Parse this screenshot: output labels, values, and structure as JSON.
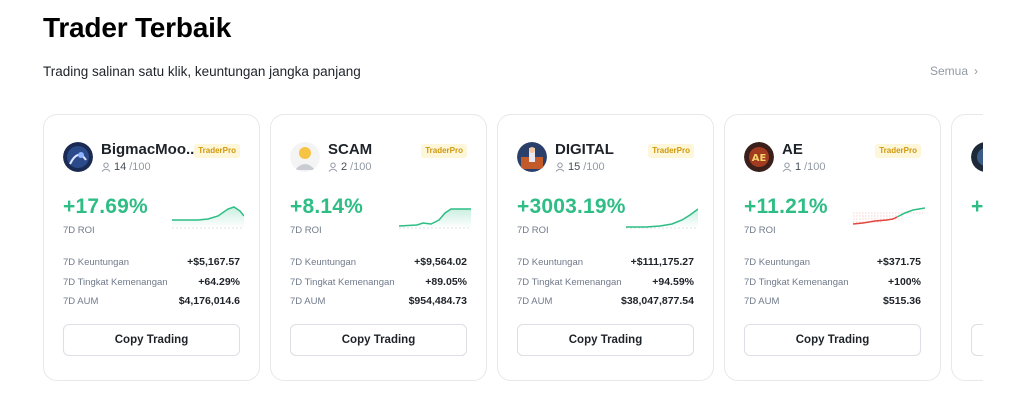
{
  "header": {
    "title": "Trader Terbaik",
    "subtitle": "Trading salinan satu klik, keuntungan jangka panjang",
    "see_all": "Semua"
  },
  "colors": {
    "positive": "#2ebd85",
    "negative": "#e3463f",
    "badge_bg": "#fef6d8",
    "badge_text": "#d0980b"
  },
  "traders": [
    {
      "name": "BigmacMoo...",
      "copiers": "14",
      "max": "/100",
      "badge": "TraderPro",
      "roi": "+17.69%",
      "roi_label": "7D ROI",
      "stats": [
        {
          "label": "7D Keuntungan",
          "value": "+$5,167.57"
        },
        {
          "label": "7D Tingkat Kemenangan",
          "value": "+64.29%"
        },
        {
          "label": "7D AUM",
          "value": "$4,176,014.6"
        }
      ],
      "button": "Copy Trading"
    },
    {
      "name": "SCAM",
      "copiers": "2",
      "max": "/100",
      "badge": "TraderPro",
      "roi": "+8.14%",
      "roi_label": "7D ROI",
      "stats": [
        {
          "label": "7D Keuntungan",
          "value": "+$9,564.02"
        },
        {
          "label": "7D Tingkat Kemenangan",
          "value": "+89.05%"
        },
        {
          "label": "7D AUM",
          "value": "$954,484.73"
        }
      ],
      "button": "Copy Trading"
    },
    {
      "name": "DIGITAL",
      "copiers": "15",
      "max": "/100",
      "badge": "TraderPro",
      "roi": "+3003.19%",
      "roi_label": "7D ROI",
      "stats": [
        {
          "label": "7D Keuntungan",
          "value": "+$111,175.27"
        },
        {
          "label": "7D Tingkat Kemenangan",
          "value": "+94.59%"
        },
        {
          "label": "7D AUM",
          "value": "$38,047,877.54"
        }
      ],
      "button": "Copy Trading"
    },
    {
      "name": "AE",
      "copiers": "1",
      "max": "/100",
      "badge": "TraderPro",
      "roi": "+11.21%",
      "roi_label": "7D ROI",
      "stats": [
        {
          "label": "7D Keuntungan",
          "value": "+$371.75"
        },
        {
          "label": "7D Tingkat Kemenangan",
          "value": "+100%"
        },
        {
          "label": "7D AUM",
          "value": "$515.36"
        }
      ],
      "button": "Copy Trading"
    },
    {
      "roi": "+"
    }
  ]
}
